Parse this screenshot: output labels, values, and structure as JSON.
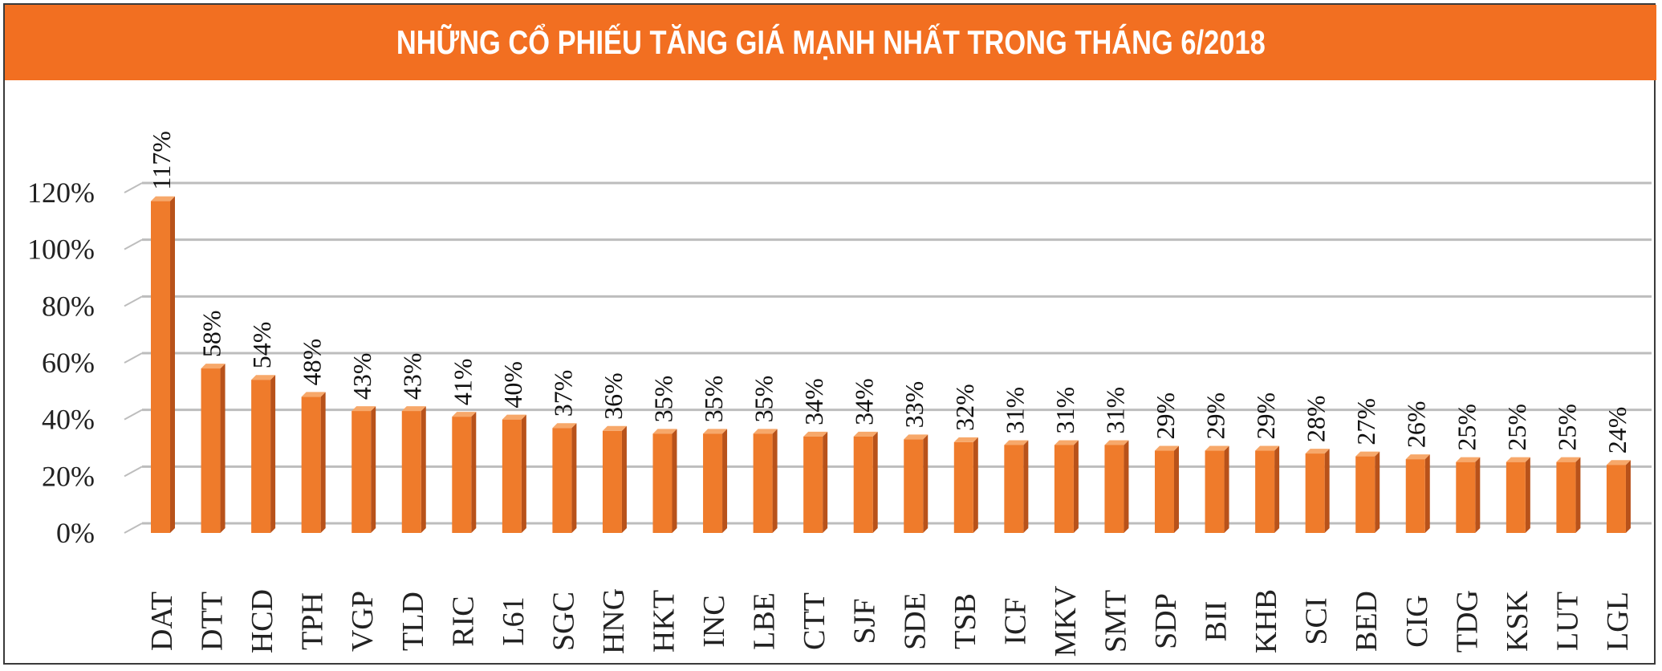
{
  "title": "NHỮNG CỔ PHIẾU TĂNG GIÁ MẠNH NHẤT TRONG THÁNG 6/2018",
  "colors": {
    "title_bg": "#f26f21",
    "bar_front": "#ef7b2b",
    "bar_side": "#b8521a",
    "bar_top": "#f7a86a",
    "grid": "#bdbdbd"
  },
  "chart_data": {
    "type": "bar",
    "title": "NHỮNG CỔ PHIẾU TĂNG GIÁ MẠNH NHẤT TRONG THÁNG 6/2018",
    "xlabel": "",
    "ylabel": "",
    "ylim": [
      0,
      120
    ],
    "yticks": [
      "0%",
      "20%",
      "40%",
      "60%",
      "80%",
      "100%",
      "120%"
    ],
    "grid": true,
    "legend": "none",
    "categories": [
      "DAT",
      "DTT",
      "HCD",
      "TPH",
      "VGP",
      "TLD",
      "RIC",
      "L61",
      "SGC",
      "HNG",
      "HKT",
      "INC",
      "LBE",
      "CTT",
      "SJF",
      "SDE",
      "TSB",
      "ICF",
      "MKV",
      "SMT",
      "SDP",
      "BII",
      "KHB",
      "SCI",
      "BED",
      "CIG",
      "TDG",
      "KSK",
      "LUT",
      "LGL"
    ],
    "values": [
      117,
      58,
      54,
      48,
      43,
      43,
      41,
      40,
      37,
      36,
      35,
      35,
      35,
      34,
      34,
      33,
      32,
      31,
      31,
      31,
      29,
      29,
      29,
      28,
      27,
      26,
      25,
      25,
      25,
      24
    ],
    "labels": [
      "117%",
      "58%",
      "54%",
      "48%",
      "43%",
      "43%",
      "41%",
      "40%",
      "37%",
      "36%",
      "35%",
      "35%",
      "35%",
      "34%",
      "34%",
      "33%",
      "32%",
      "31%",
      "31%",
      "31%",
      "29%",
      "29%",
      "29%",
      "28%",
      "27%",
      "26%",
      "25%",
      "25%",
      "25%",
      "24%"
    ]
  }
}
